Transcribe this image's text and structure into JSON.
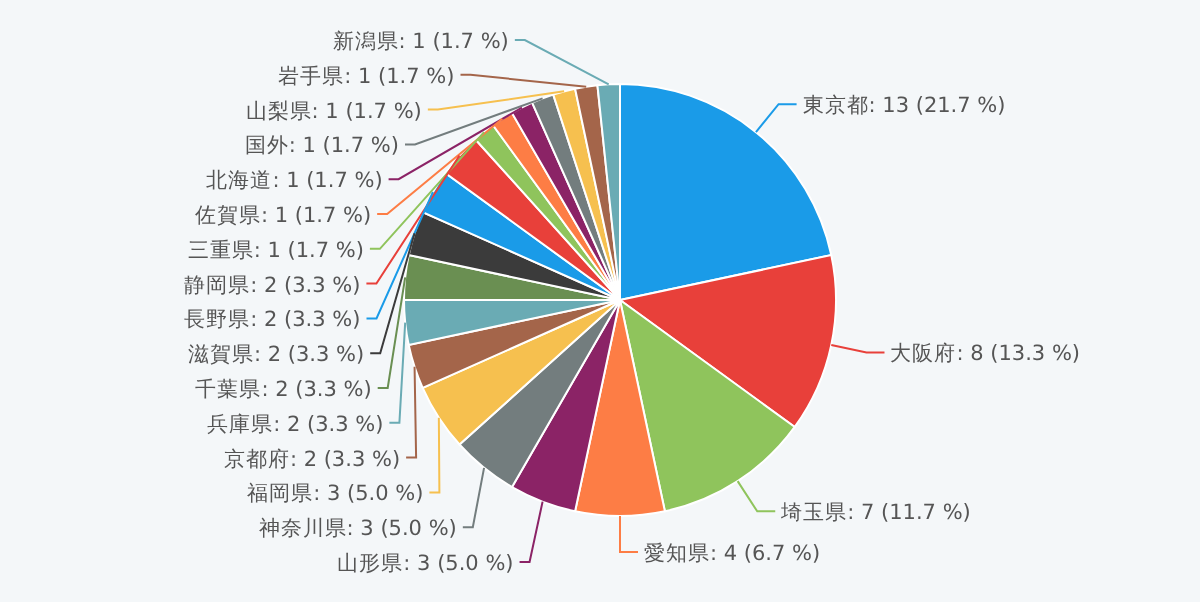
{
  "chart_data": {
    "type": "pie",
    "categories": [
      "東京都",
      "大阪府",
      "埼玉県",
      "愛知県",
      "山形県",
      "神奈川県",
      "福岡県",
      "京都府",
      "兵庫県",
      "千葉県",
      "滋賀県",
      "長野県",
      "静岡県",
      "三重県",
      "佐賀県",
      "北海道",
      "国外",
      "山梨県",
      "岩手県",
      "新潟県"
    ],
    "values": [
      13,
      8,
      7,
      4,
      3,
      3,
      3,
      2,
      2,
      2,
      2,
      2,
      2,
      1,
      1,
      1,
      1,
      1,
      1,
      1
    ],
    "value_labels": [
      "13 (21.7 %)",
      "8 (13.3 %)",
      "7 (11.7 %)",
      "4 (6.7 %)",
      "3 (5.0 %)",
      "3 (5.0 %)",
      "3 (5.0 %)",
      "2 (3.3 %)",
      "2 (3.3 %)",
      "2 (3.3 %)",
      "2 (3.3 %)",
      "2 (3.3 %)",
      "2 (3.3 %)",
      "1 (1.7 %)",
      "1 (1.7 %)",
      "1 (1.7 %)",
      "1 (1.7 %)",
      "1 (1.7 %)",
      "1 (1.7 %)",
      "1 (1.7 %)"
    ],
    "colors": [
      "#1a9be8",
      "#e8403a",
      "#8fc45c",
      "#fd7d45",
      "#8b2366",
      "#737d7e",
      "#f6c04f",
      "#a4654a",
      "#6aabb4",
      "#6a8f52",
      "#3b3b3b",
      "#1a9be8",
      "#e8403a",
      "#8fc45c",
      "#fd7d45",
      "#8b2366",
      "#737d7e",
      "#f6c04f",
      "#a4654a",
      "#6aabb4"
    ],
    "legend": false
  }
}
